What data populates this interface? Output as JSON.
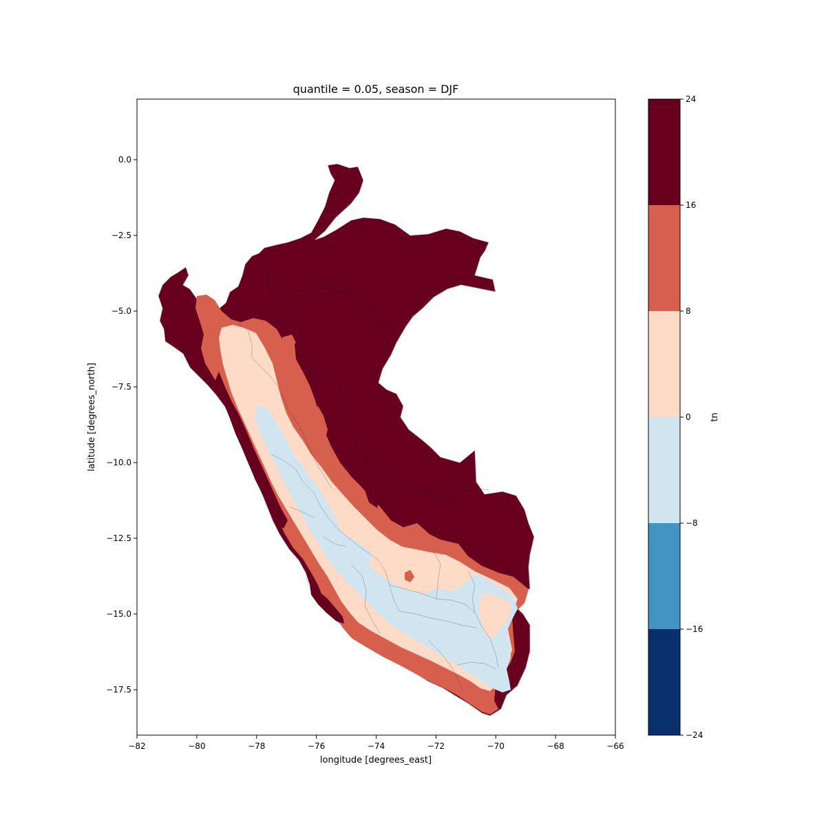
{
  "title": "quantile = 0.05, season = DJF",
  "xlabel": "longitude [degrees_east]",
  "ylabel": "latitude [degrees_north]",
  "colorbar_label": "tn",
  "xlim": [
    -82,
    -66
  ],
  "ylim": [
    -19,
    2
  ],
  "xticks": [
    -82,
    -80,
    -78,
    -76,
    -74,
    -72,
    -70,
    -68,
    -66
  ],
  "yticks": [
    0.0,
    -2.5,
    -5.0,
    -7.5,
    -10.0,
    -12.5,
    -15.0,
    -17.5
  ],
  "xtick_labels": [
    "−82",
    "−80",
    "−78",
    "−76",
    "−74",
    "−72",
    "−70",
    "−68",
    "−66"
  ],
  "ytick_labels": [
    "0.0",
    "−2.5",
    "−5.0",
    "−7.5",
    "−10.0",
    "−12.5",
    "−15.0",
    "−17.5"
  ],
  "colorbar_levels": [
    -24,
    -16,
    -8,
    0,
    8,
    16,
    24
  ],
  "colorbar_tick_labels": [
    "−24",
    "−16",
    "−8",
    "0",
    "8",
    "16",
    "24"
  ],
  "colorbar_colors": [
    "#08306b",
    "#4393c3",
    "#d1e5f0",
    "#fddbc7",
    "#d6604d",
    "#67001f"
  ],
  "map_colors": {
    "band_16_24": "#67001f",
    "band_8_16": "#d6604d",
    "band_0_8": "#fddbc7",
    "band_neg8_0": "#d1e5f0",
    "boundary": "#333333"
  }
}
